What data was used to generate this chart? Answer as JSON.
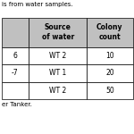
{
  "title_partial": "is from water samples.",
  "footer": "er Tanker.",
  "header_col1": "",
  "header_col2": "Source\nof water",
  "header_col3": "Colony\ncount",
  "rows": [
    [
      "6",
      "WT 2",
      "10"
    ],
    [
      "-7",
      "WT 1",
      "20"
    ],
    [
      "",
      "WT 2",
      "50"
    ]
  ],
  "header_bg": "#c0c0c0",
  "row_bg": "#ffffff",
  "border_color": "#000000",
  "text_color": "#000000",
  "title_color": "#000000",
  "font_size": 5.5,
  "header_font_size": 5.5
}
